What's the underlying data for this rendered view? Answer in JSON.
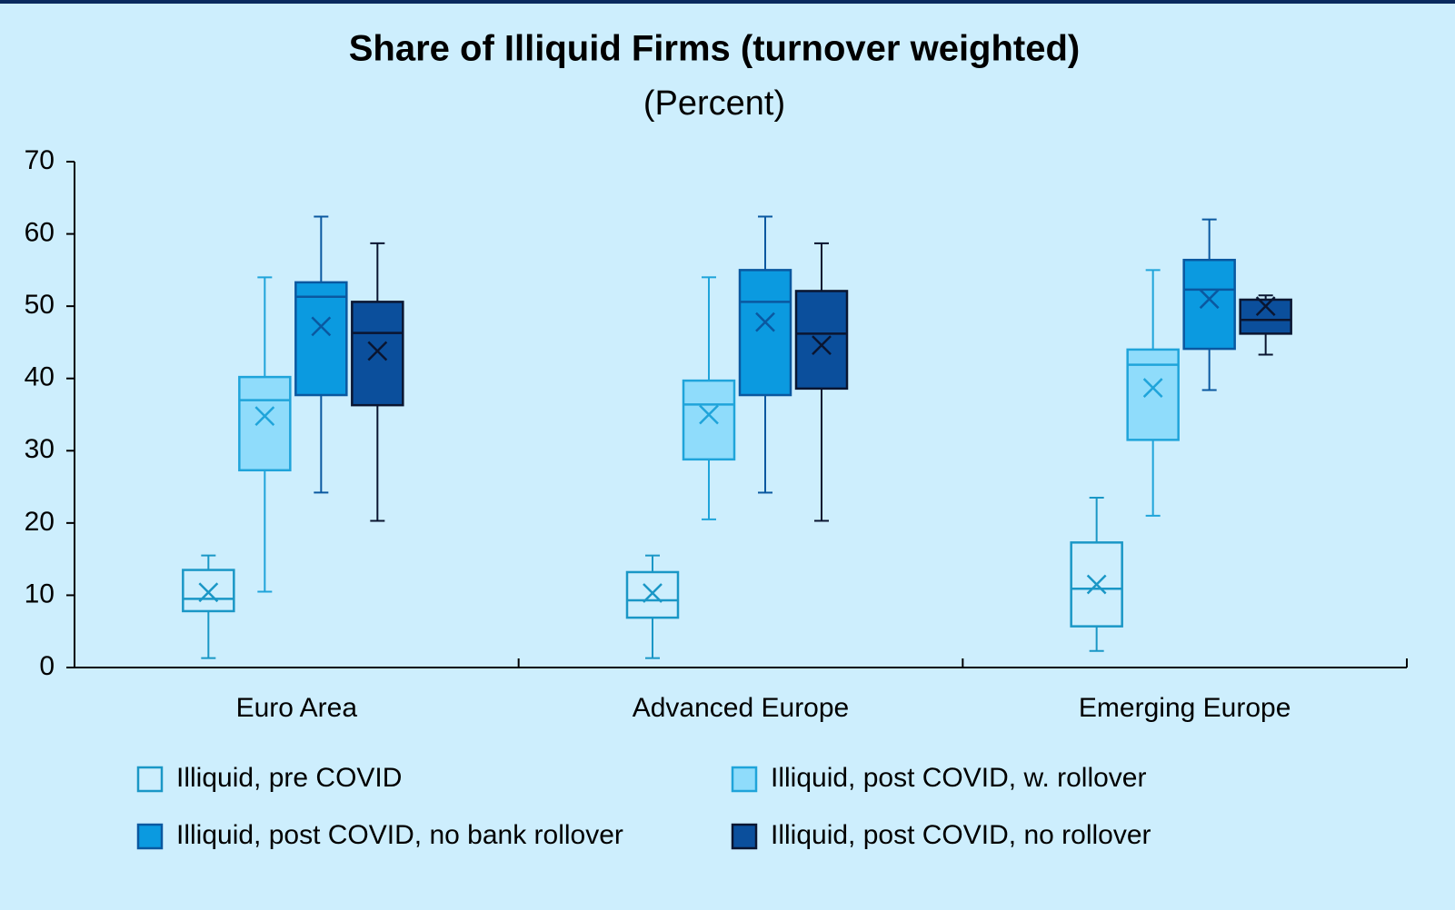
{
  "chart_data": {
    "type": "box",
    "title": "Share of Illiquid Firms (turnover weighted)",
    "subtitle": "(Percent)",
    "categories": [
      "Euro Area",
      "Advanced Europe",
      "Emerging Europe"
    ],
    "ylim": [
      0,
      70
    ],
    "yticks": [
      0,
      10,
      20,
      30,
      40,
      50,
      60,
      70
    ],
    "legend": "bottom",
    "series": [
      {
        "name": "Illiquid, pre COVID",
        "color": "#cdeefd",
        "stroke": "#1a97c6",
        "min": [
          1.3,
          1.3,
          2.3
        ],
        "q1": [
          7.8,
          6.9,
          5.7
        ],
        "median": [
          9.5,
          9.3,
          10.9
        ],
        "q3": [
          13.5,
          13.2,
          17.3
        ],
        "max": [
          15.5,
          15.5,
          23.5
        ],
        "mean": [
          10.4,
          10.3,
          11.5
        ]
      },
      {
        "name": "Illiquid, post COVID, w. rollover",
        "color": "#8fdcfb",
        "stroke": "#1fa4da",
        "min": [
          10.5,
          20.5,
          21
        ],
        "q1": [
          27.3,
          28.8,
          31.5
        ],
        "median": [
          37,
          36.4,
          41.9
        ],
        "q3": [
          40.2,
          39.7,
          44
        ],
        "max": [
          54,
          54,
          55
        ],
        "mean": [
          34.8,
          35,
          38.7
        ]
      },
      {
        "name": "Illiquid, post COVID, no bank rollover",
        "color": "#0b9ae0",
        "stroke": "#0a58a0",
        "min": [
          24.2,
          24.2,
          38.4
        ],
        "q1": [
          37.7,
          37.7,
          44.1
        ],
        "median": [
          51.3,
          50.6,
          52.3
        ],
        "q3": [
          53.3,
          55,
          56.4
        ],
        "max": [
          62.4,
          62.4,
          62
        ],
        "mean": [
          47.2,
          47.8,
          51
        ]
      },
      {
        "name": "Illiquid, post COVID, no rollover",
        "color": "#0b4f9c",
        "stroke": "#0a1530",
        "min": [
          20.3,
          20.3,
          43.3
        ],
        "q1": [
          36.3,
          38.6,
          46.2
        ],
        "median": [
          46.3,
          46.2,
          48.1
        ],
        "q3": [
          50.6,
          52.1,
          50.9
        ],
        "max": [
          58.7,
          58.7,
          51.5
        ],
        "mean": [
          43.8,
          44.6,
          50
        ]
      }
    ]
  }
}
